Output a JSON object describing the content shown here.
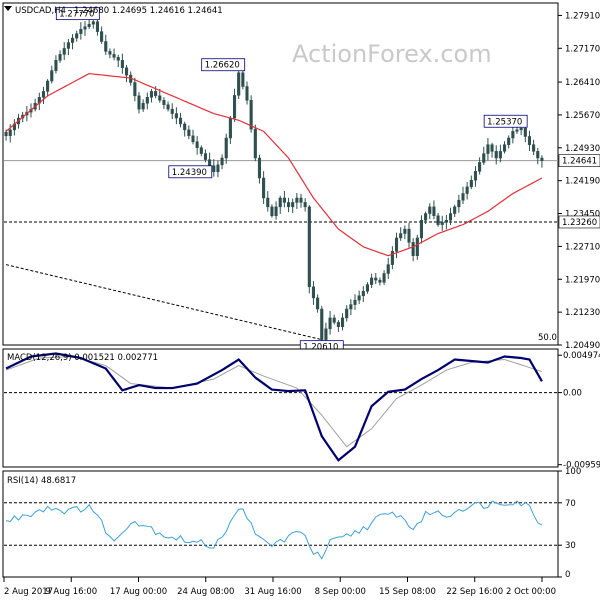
{
  "header": {
    "symbol": "USDCAD,H4",
    "ohlc": "1.24680 1.24695 1.24616 1.24641"
  },
  "watermark": "ActionForex.com",
  "colors": {
    "candle": "#2f4f4f",
    "ma": "#e0303a",
    "macd": "#00006e",
    "signal": "#a0a0a0",
    "rsi": "#3fa0d8",
    "label_border": "#00007f"
  },
  "chart_data": [
    {
      "type": "candlestick",
      "title": "USDCAD,H4",
      "ylim": [
        1.2049,
        1.2819
      ],
      "y_ticks": [
        "1.27910",
        "1.27170",
        "1.26410",
        "1.25670",
        "1.24930",
        "1.24190",
        "1.23450",
        "1.22710",
        "1.21970",
        "1.21230",
        "1.20490"
      ],
      "x_ticks": [
        "2 Aug 2017",
        "9 Aug 16:00",
        "17 Aug 00:00",
        "24 Aug 08:00",
        "31 Aug 16:00",
        "8 Sep 00:00",
        "15 Sep 08:00",
        "22 Sep 16:00",
        "2 Oct 00:00"
      ],
      "price_anchors": [
        [
          0,
          1.252
        ],
        [
          3,
          1.256
        ],
        [
          6,
          1.258
        ],
        [
          9,
          1.262
        ],
        [
          12,
          1.269
        ],
        [
          15,
          1.273
        ],
        [
          18,
          1.276
        ],
        [
          21,
          1.2777
        ],
        [
          24,
          1.271
        ],
        [
          27,
          1.269
        ],
        [
          30,
          1.264
        ],
        [
          32,
          1.258
        ],
        [
          35,
          1.262
        ],
        [
          38,
          1.259
        ],
        [
          41,
          1.256
        ],
        [
          44,
          1.252
        ],
        [
          47,
          1.248
        ],
        [
          50,
          1.2439
        ],
        [
          52,
          1.247
        ],
        [
          54,
          1.256
        ],
        [
          56,
          1.2662
        ],
        [
          58,
          1.26
        ],
        [
          60,
          1.247
        ],
        [
          62,
          1.238
        ],
        [
          64,
          1.234
        ],
        [
          66,
          1.238
        ],
        [
          68,
          1.236
        ],
        [
          70,
          1.238
        ],
        [
          72,
          1.236
        ],
        [
          73,
          1.218
        ],
        [
          75,
          1.213
        ],
        [
          76,
          1.2061
        ],
        [
          78,
          1.211
        ],
        [
          80,
          1.209
        ],
        [
          82,
          1.213
        ],
        [
          84,
          1.215
        ],
        [
          86,
          1.217
        ],
        [
          88,
          1.22
        ],
        [
          90,
          1.219
        ],
        [
          92,
          1.223
        ],
        [
          94,
          1.229
        ],
        [
          96,
          1.231
        ],
        [
          98,
          1.225
        ],
        [
          100,
          1.233
        ],
        [
          102,
          1.236
        ],
        [
          104,
          1.232
        ],
        [
          106,
          1.233
        ],
        [
          108,
          1.236
        ],
        [
          110,
          1.239
        ],
        [
          112,
          1.242
        ],
        [
          114,
          1.246
        ],
        [
          116,
          1.25
        ],
        [
          118,
          1.247
        ],
        [
          120,
          1.25
        ],
        [
          122,
          1.253
        ],
        [
          124,
          1.2537
        ],
        [
          126,
          1.25
        ],
        [
          128,
          1.247
        ],
        [
          129,
          1.2464
        ]
      ],
      "moving_average_anchors": [
        [
          0,
          1.253
        ],
        [
          10,
          1.261
        ],
        [
          20,
          1.266
        ],
        [
          30,
          1.265
        ],
        [
          40,
          1.261
        ],
        [
          50,
          1.257
        ],
        [
          56,
          1.2555
        ],
        [
          62,
          1.253
        ],
        [
          68,
          1.247
        ],
        [
          74,
          1.238
        ],
        [
          80,
          1.231
        ],
        [
          86,
          1.227
        ],
        [
          92,
          1.225
        ],
        [
          98,
          1.227
        ],
        [
          104,
          1.23
        ],
        [
          110,
          1.232
        ],
        [
          116,
          1.235
        ],
        [
          122,
          1.239
        ],
        [
          129,
          1.2425
        ]
      ],
      "fibonacci_label": "50.0",
      "horizontal_levels": [
        {
          "value": 1.2464,
          "label": "1.24641",
          "style": "solid",
          "highlight": true
        },
        {
          "value": 1.2326,
          "label": "1.23260",
          "style": "dashed",
          "highlight": true
        }
      ],
      "trend_line": {
        "from": [
          0,
          1.223
        ],
        "to": [
          76,
          1.2061
        ]
      },
      "annotations": [
        {
          "label": "1.27770",
          "index": 21,
          "value": 1.2777
        },
        {
          "label": "1.26620",
          "index": 56,
          "value": 1.2662
        },
        {
          "label": "1.24390",
          "index": 50,
          "value": 1.2439
        },
        {
          "label": "1.20610",
          "index": 76,
          "value": 1.2061
        },
        {
          "label": "1.25370",
          "index": 124,
          "value": 1.2537
        }
      ]
    },
    {
      "type": "line",
      "title": "MACD(12,26,9) 0.001521 0.002771",
      "ylim": [
        -0.0099,
        0.0058
      ],
      "y_ticks": [
        "0.004974",
        "0.00",
        "-0.009591"
      ],
      "series": [
        {
          "name": "MACD",
          "anchors": [
            [
              0,
              0.0032
            ],
            [
              6,
              0.0048
            ],
            [
              12,
              0.0052
            ],
            [
              18,
              0.0046
            ],
            [
              24,
              0.0032
            ],
            [
              28,
              0.0003
            ],
            [
              32,
              0.001
            ],
            [
              36,
              0.0006
            ],
            [
              40,
              0.0006
            ],
            [
              46,
              0.0012
            ],
            [
              52,
              0.003
            ],
            [
              56,
              0.0044
            ],
            [
              60,
              0.002
            ],
            [
              64,
              0.0004
            ],
            [
              68,
              0.0002
            ],
            [
              72,
              0.0003
            ],
            [
              76,
              -0.0058
            ],
            [
              80,
              -0.009
            ],
            [
              84,
              -0.0072
            ],
            [
              88,
              -0.0018
            ],
            [
              92,
              0.0001
            ],
            [
              96,
              0.0004
            ],
            [
              100,
              0.0018
            ],
            [
              104,
              0.003
            ],
            [
              108,
              0.0044
            ],
            [
              112,
              0.0042
            ],
            [
              116,
              0.004
            ],
            [
              120,
              0.0048
            ],
            [
              124,
              0.0046
            ],
            [
              126,
              0.0044
            ],
            [
              129,
              0.0015
            ]
          ]
        },
        {
          "name": "Signal",
          "anchors": [
            [
              0,
              0.003
            ],
            [
              8,
              0.0046
            ],
            [
              16,
              0.0048
            ],
            [
              24,
              0.0036
            ],
            [
              30,
              0.0012
            ],
            [
              40,
              0.0006
            ],
            [
              50,
              0.0018
            ],
            [
              56,
              0.0036
            ],
            [
              62,
              0.0022
            ],
            [
              70,
              0.0006
            ],
            [
              76,
              -0.003
            ],
            [
              82,
              -0.0072
            ],
            [
              88,
              -0.0048
            ],
            [
              94,
              -0.0008
            ],
            [
              100,
              0.001
            ],
            [
              106,
              0.003
            ],
            [
              112,
              0.004
            ],
            [
              120,
              0.0044
            ],
            [
              129,
              0.0028
            ]
          ]
        }
      ]
    },
    {
      "type": "line",
      "title": "RSI(14) 48.6817",
      "ylim": [
        0,
        100
      ],
      "y_ticks": [
        "100",
        "70",
        "30",
        "0"
      ],
      "levels": [
        70,
        30
      ],
      "series": [
        {
          "name": "RSI",
          "anchors": [
            [
              0,
              52
            ],
            [
              4,
              58
            ],
            [
              10,
              66
            ],
            [
              16,
              62
            ],
            [
              20,
              68
            ],
            [
              24,
              45
            ],
            [
              26,
              32
            ],
            [
              30,
              54
            ],
            [
              34,
              48
            ],
            [
              38,
              40
            ],
            [
              42,
              36
            ],
            [
              46,
              32
            ],
            [
              50,
              30
            ],
            [
              54,
              50
            ],
            [
              57,
              68
            ],
            [
              60,
              38
            ],
            [
              64,
              30
            ],
            [
              68,
              38
            ],
            [
              72,
              42
            ],
            [
              74,
              22
            ],
            [
              76,
              18
            ],
            [
              78,
              32
            ],
            [
              82,
              38
            ],
            [
              86,
              46
            ],
            [
              90,
              56
            ],
            [
              94,
              60
            ],
            [
              98,
              46
            ],
            [
              102,
              62
            ],
            [
              106,
              58
            ],
            [
              110,
              66
            ],
            [
              114,
              68
            ],
            [
              118,
              70
            ],
            [
              122,
              72
            ],
            [
              124,
              70
            ],
            [
              126,
              66
            ],
            [
              129,
              49
            ]
          ]
        }
      ]
    }
  ]
}
